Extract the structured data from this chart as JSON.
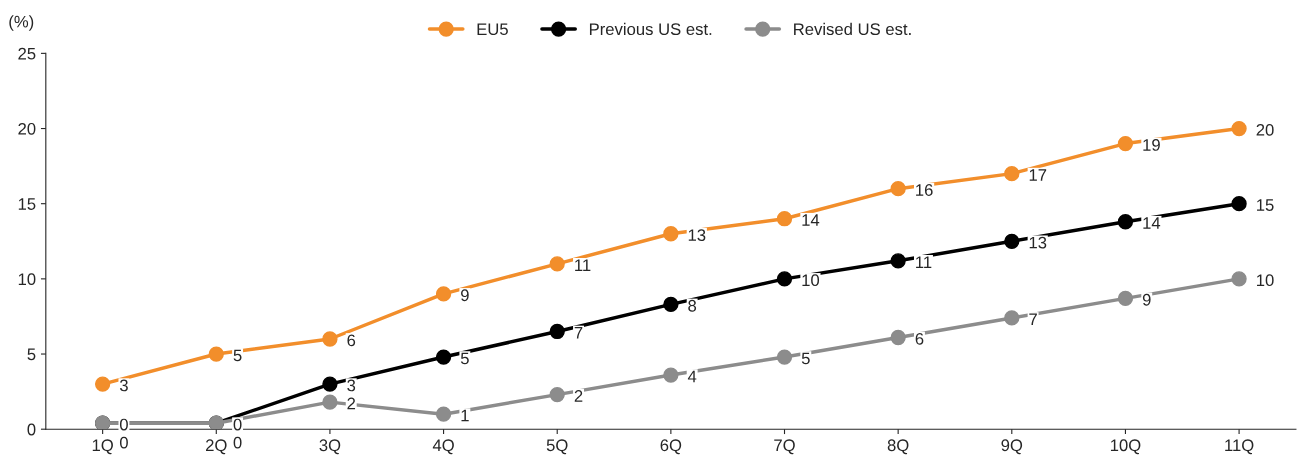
{
  "chart_data": {
    "type": "line",
    "ylabel": "(%)",
    "categories": [
      "1Q",
      "2Q",
      "3Q",
      "4Q",
      "5Q",
      "6Q",
      "7Q",
      "8Q",
      "9Q",
      "10Q",
      "11Q"
    ],
    "series": [
      {
        "name": "EU5",
        "color": "#f28e2b",
        "values": [
          3,
          5,
          6,
          9,
          11,
          13,
          14,
          16,
          17,
          19,
          20
        ],
        "value_labels": [
          "3",
          "5",
          "6",
          "9",
          "11",
          "13",
          "14",
          "16",
          "17",
          "19",
          "20"
        ]
      },
      {
        "name": "Previous US est.",
        "color": "#000000",
        "values": [
          0.4,
          0.4,
          3,
          4.8,
          6.5,
          8.3,
          10,
          11.2,
          12.5,
          13.8,
          15
        ],
        "value_labels": [
          "0",
          "0",
          "3",
          "5",
          "7",
          "8",
          "10",
          "11",
          "13",
          "14",
          "15"
        ]
      },
      {
        "name": "Revised US est.",
        "color": "#8c8c8c",
        "values": [
          0.4,
          0.4,
          1.8,
          1,
          2.3,
          3.6,
          4.8,
          6.1,
          7.4,
          8.7,
          10
        ],
        "value_labels": [
          "0",
          "0",
          "2",
          "1",
          "2",
          "4",
          "5",
          "6",
          "7",
          "9",
          "10"
        ]
      }
    ],
    "ylim": [
      0,
      25
    ],
    "yticks": [
      0,
      5,
      10,
      15,
      20,
      25
    ],
    "marker": "circle",
    "line_style": "solid",
    "grid": false,
    "legend": "top"
  }
}
